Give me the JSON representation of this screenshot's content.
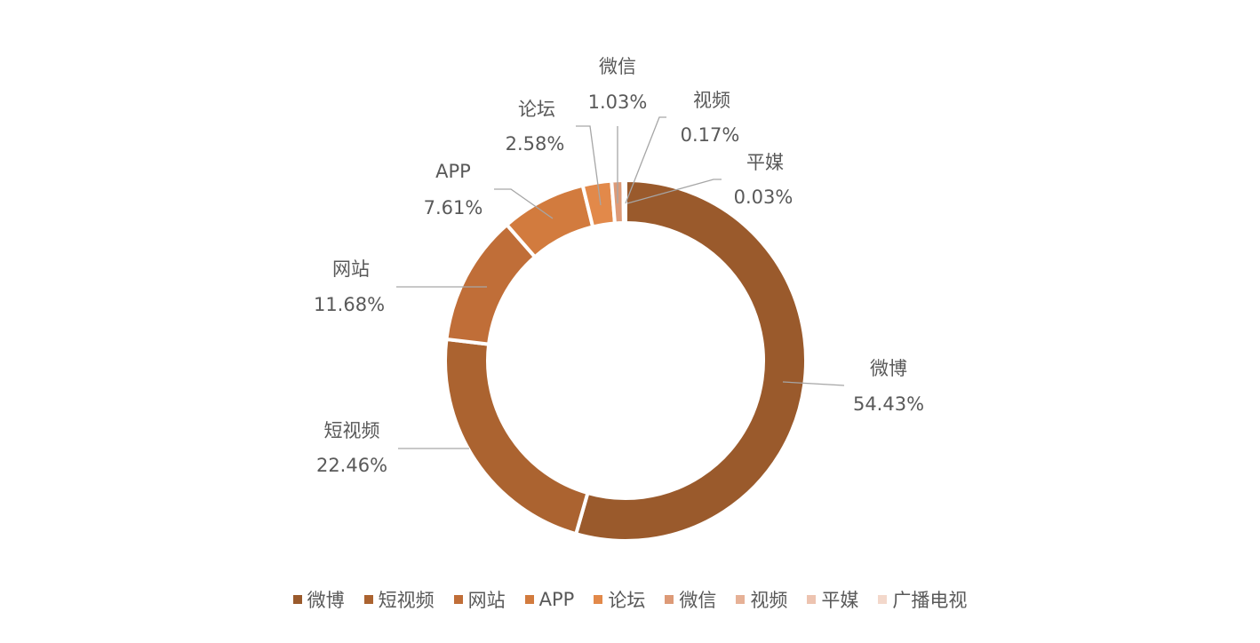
{
  "chart_data": {
    "type": "pie",
    "donut": true,
    "categories": [
      "微博",
      "短视频",
      "网站",
      "APP",
      "论坛",
      "微信",
      "视频",
      "平媒",
      "广播电视"
    ],
    "values": [
      54.43,
      22.46,
      11.68,
      7.61,
      2.58,
      1.03,
      0.17,
      0.03,
      0.01
    ],
    "value_labels": [
      "54.43%",
      "22.46%",
      "11.68%",
      "7.61%",
      "2.58%",
      "1.03%",
      "0.17%",
      "0.03%",
      ""
    ],
    "colors": [
      "#9A5A2C",
      "#AB6330",
      "#C06E38",
      "#D27B3E",
      "#E2894A",
      "#DD9A77",
      "#E6B196",
      "#EDC3B0",
      "#F3D8CB"
    ],
    "legend_position": "bottom"
  }
}
